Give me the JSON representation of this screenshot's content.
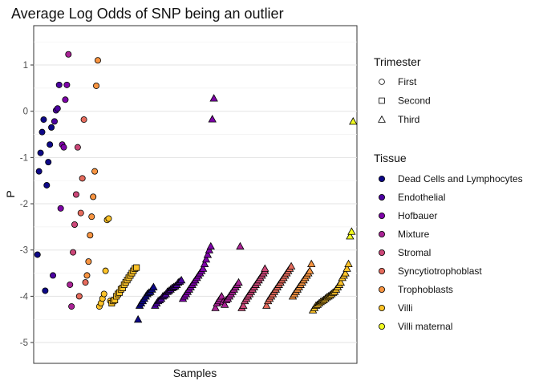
{
  "chart_data": {
    "type": "scatter",
    "title": "Average Log Odds of SNP being an outlier",
    "xlabel": "Samples",
    "ylabel": "P",
    "ylim": [
      -5.45,
      1.85
    ],
    "yticks": [
      1,
      0,
      -1,
      -2,
      -3,
      -4,
      -5
    ],
    "ytick_labels": [
      "1",
      "0",
      "-1",
      "-2",
      "-3",
      "-4",
      "-5"
    ],
    "grid": true,
    "legend_position": "right",
    "shape_legend": {
      "title": "Trimester",
      "items": [
        {
          "label": "First",
          "shape": "circle"
        },
        {
          "label": "Second",
          "shape": "square"
        },
        {
          "label": "Third",
          "shape": "triangle"
        }
      ]
    },
    "color_legend": {
      "title": "Tissue",
      "items": [
        {
          "label": "Dead Cells and Lymphocytes",
          "color": "#0d0887"
        },
        {
          "label": "Endothelial",
          "color": "#4c02a1"
        },
        {
          "label": "Hofbauer",
          "color": "#7e03a8"
        },
        {
          "label": "Mixture",
          "color": "#a92395"
        },
        {
          "label": "Stromal",
          "color": "#cc4778"
        },
        {
          "label": "Syncytiotrophoblast",
          "color": "#e56b5d"
        },
        {
          "label": "Trophoblasts",
          "color": "#f89441"
        },
        {
          "label": "Villi",
          "color": "#fdc328"
        },
        {
          "label": "Villi maternal",
          "color": "#f0f921"
        }
      ]
    },
    "series": [
      {
        "name": "Dead Cells and Lymphocytes",
        "trimester": "First",
        "x": [
          1,
          2,
          3,
          4,
          5,
          6,
          7,
          8,
          9,
          10
        ],
        "y": [
          -3.1,
          -1.3,
          -0.9,
          -0.45,
          -0.18,
          -3.88,
          -1.6,
          -1.1,
          -0.72,
          -0.35
        ]
      },
      {
        "name": "Endothelial",
        "trimester": "First",
        "x": [
          11,
          12,
          13,
          14,
          15
        ],
        "y": [
          -3.55,
          -0.22,
          0.02,
          0.06,
          0.57
        ]
      },
      {
        "name": "Hofbauer",
        "trimester": "First",
        "x": [
          16,
          17,
          18,
          19,
          20
        ],
        "y": [
          -2.1,
          -0.72,
          -0.78,
          0.25,
          0.57
        ]
      },
      {
        "name": "Mixture",
        "trimester": "First",
        "x": [
          21,
          22,
          23
        ],
        "y": [
          1.23,
          -3.75,
          -4.22
        ]
      },
      {
        "name": "Stromal",
        "trimester": "First",
        "x": [
          24,
          25,
          26,
          27
        ],
        "y": [
          -3.05,
          -2.45,
          -1.8,
          -0.78
        ]
      },
      {
        "name": "Syncytiotrophoblast",
        "trimester": "First",
        "x": [
          28,
          29,
          30,
          31,
          32
        ],
        "y": [
          -4.0,
          -2.2,
          -1.45,
          -0.18,
          -3.7
        ]
      },
      {
        "name": "Trophoblasts",
        "trimester": "First",
        "x": [
          33,
          34,
          35,
          36,
          37,
          38,
          39,
          40
        ],
        "y": [
          -3.55,
          -3.25,
          -2.68,
          -2.28,
          -1.85,
          -1.3,
          0.55,
          1.1
        ]
      },
      {
        "name": "Villi",
        "trimester": "First",
        "x": [
          41,
          42,
          43,
          44,
          45,
          46,
          47,
          48
        ],
        "y": [
          -4.22,
          -4.15,
          -4.05,
          -3.95,
          -3.45,
          -2.35,
          -2.32,
          -4.1
        ]
      },
      {
        "name": "Villi",
        "trimester": "Second",
        "x": [
          49,
          50,
          51,
          52,
          53,
          54,
          55,
          56,
          57,
          58,
          59,
          60,
          61,
          62,
          63,
          64,
          65
        ],
        "y": [
          -4.15,
          -4.1,
          -4.08,
          -4.0,
          -3.95,
          -3.92,
          -3.85,
          -3.82,
          -3.75,
          -3.7,
          -3.65,
          -3.6,
          -3.55,
          -3.5,
          -3.45,
          -3.4,
          -3.38
        ]
      },
      {
        "name": "Dead Cells and Lymphocytes",
        "trimester": "Third",
        "x": [
          66,
          67,
          68,
          69,
          70,
          71,
          72,
          73,
          74,
          75,
          76
        ],
        "y": [
          -4.5,
          -4.2,
          -4.15,
          -4.1,
          -4.05,
          -4.0,
          -3.95,
          -3.92,
          -3.9,
          -3.85,
          -3.8
        ]
      },
      {
        "name": "Endothelial",
        "trimester": "Third",
        "x": [
          77,
          78,
          79,
          80,
          81,
          82,
          83,
          84,
          85,
          86,
          87,
          88,
          89,
          90,
          91,
          92,
          93,
          94
        ],
        "y": [
          -4.2,
          -4.15,
          -4.1,
          -4.08,
          -4.05,
          -4.0,
          -3.98,
          -3.95,
          -3.9,
          -3.88,
          -3.85,
          -3.82,
          -3.8,
          -3.78,
          -3.75,
          -3.7,
          -3.68,
          -3.65
        ]
      },
      {
        "name": "Hofbauer",
        "trimester": "Third",
        "x": [
          95,
          96,
          97,
          98,
          99,
          100,
          101,
          102,
          103,
          104,
          105,
          106,
          107,
          108,
          109,
          110,
          111,
          112,
          113,
          114,
          115
        ],
        "y": [
          -4.05,
          -4.0,
          -3.95,
          -3.9,
          -3.85,
          -3.8,
          -3.75,
          -3.7,
          -3.65,
          -3.6,
          -3.55,
          -3.5,
          -3.45,
          -3.4,
          -3.3,
          -3.2,
          -3.1,
          -3.0,
          -2.92,
          -0.17,
          0.28
        ]
      },
      {
        "name": "Mixture",
        "trimester": "Third",
        "x": [
          116,
          117,
          118,
          119,
          120,
          121,
          122,
          123,
          124,
          125,
          126,
          127,
          128,
          129,
          130,
          131,
          132
        ],
        "y": [
          -4.25,
          -4.15,
          -4.1,
          -4.05,
          -4.0,
          -4.12,
          -4.18,
          -4.08,
          -4.05,
          -4.0,
          -3.95,
          -3.9,
          -3.85,
          -3.8,
          -3.75,
          -3.7,
          -2.92
        ]
      },
      {
        "name": "Stromal",
        "trimester": "Third",
        "x": [
          133,
          134,
          135,
          136,
          137,
          138,
          139,
          140,
          141,
          142,
          143,
          144,
          145,
          146,
          147,
          148,
          148
        ],
        "y": [
          -4.25,
          -4.2,
          -4.1,
          -4.05,
          -4.0,
          -3.95,
          -3.9,
          -3.85,
          -3.8,
          -3.75,
          -3.7,
          -3.65,
          -3.6,
          -3.55,
          -3.5,
          -3.45,
          -3.4
        ]
      },
      {
        "name": "Syncytiotrophoblast",
        "trimester": "Third",
        "x": [
          149,
          150,
          151,
          152,
          153,
          154,
          155,
          156,
          157,
          158,
          159,
          160,
          161,
          162,
          163,
          164,
          165
        ],
        "y": [
          -4.2,
          -4.1,
          -4.05,
          -4.0,
          -3.95,
          -3.9,
          -3.85,
          -3.8,
          -3.75,
          -3.7,
          -3.65,
          -3.6,
          -3.55,
          -3.5,
          -3.45,
          -3.4,
          -3.35
        ]
      },
      {
        "name": "Trophoblasts",
        "trimester": "Third",
        "x": [
          166,
          167,
          168,
          169,
          170,
          171,
          172,
          173,
          174,
          175,
          176,
          177,
          178
        ],
        "y": [
          -4.0,
          -3.95,
          -3.9,
          -3.85,
          -3.8,
          -3.75,
          -3.7,
          -3.65,
          -3.6,
          -3.55,
          -3.5,
          -3.45,
          -3.3
        ]
      },
      {
        "name": "Villi",
        "trimester": "Third",
        "x": [
          179,
          180,
          181,
          182,
          183,
          184,
          185,
          186,
          187,
          188,
          189,
          190,
          191,
          192,
          193,
          194,
          195,
          196,
          197,
          198,
          199,
          200,
          201,
          202
        ],
        "y": [
          -4.3,
          -4.25,
          -4.2,
          -4.18,
          -4.15,
          -4.12,
          -4.1,
          -4.08,
          -4.05,
          -4.02,
          -4.0,
          -3.98,
          -3.95,
          -3.92,
          -3.9,
          -3.85,
          -3.8,
          -3.75,
          -3.7,
          -3.6,
          -3.55,
          -3.5,
          -3.4,
          -3.3
        ]
      },
      {
        "name": "Villi maternal",
        "trimester": "Third",
        "x": [
          203,
          204,
          205
        ],
        "y": [
          -2.7,
          -2.6,
          -0.22
        ]
      }
    ]
  }
}
